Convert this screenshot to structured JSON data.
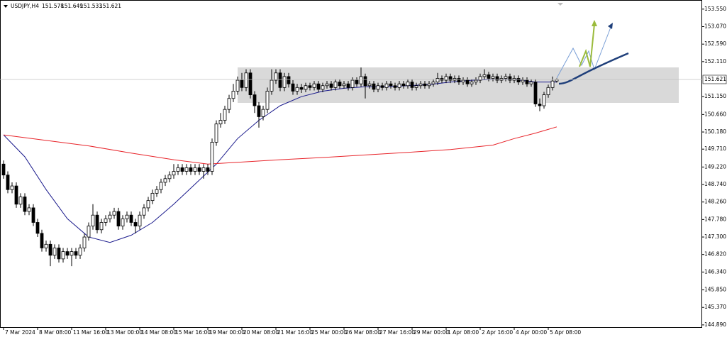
{
  "chart_data": {
    "type": "candlestick",
    "symbol": "USDJPY,H4",
    "candles": [
      [
        149.3,
        149.4,
        148.9,
        149.0
      ],
      [
        149.0,
        149.1,
        148.5,
        148.6
      ],
      [
        148.6,
        148.8,
        148.5,
        148.7
      ],
      [
        148.7,
        148.8,
        148.1,
        148.2
      ],
      [
        148.2,
        148.5,
        148.1,
        148.4
      ],
      [
        148.4,
        148.5,
        147.9,
        148.0
      ],
      [
        148.0,
        148.2,
        147.9,
        148.1
      ],
      [
        148.1,
        148.2,
        147.6,
        147.7
      ],
      [
        147.7,
        147.8,
        147.3,
        147.4
      ],
      [
        147.4,
        147.5,
        146.9,
        147.0
      ],
      [
        147.0,
        147.2,
        146.9,
        147.1
      ],
      [
        147.1,
        147.2,
        146.5,
        146.8
      ],
      [
        146.8,
        147.1,
        146.7,
        147.0
      ],
      [
        147.0,
        147.1,
        146.6,
        146.7
      ],
      [
        146.7,
        147.0,
        146.6,
        146.9
      ],
      [
        146.9,
        147.0,
        146.7,
        146.8
      ],
      [
        146.8,
        147.0,
        146.5,
        146.9
      ],
      [
        146.9,
        147.0,
        146.7,
        146.8
      ],
      [
        146.8,
        147.1,
        146.7,
        147.0
      ],
      [
        147.0,
        147.4,
        146.9,
        147.3
      ],
      [
        147.3,
        147.7,
        147.2,
        147.6
      ],
      [
        147.6,
        148.2,
        147.5,
        147.9
      ],
      [
        147.9,
        148.0,
        147.4,
        147.5
      ],
      [
        147.5,
        147.8,
        147.4,
        147.7
      ],
      [
        147.7,
        147.9,
        147.6,
        147.8
      ],
      [
        147.8,
        148.0,
        147.7,
        147.9
      ],
      [
        147.9,
        148.1,
        147.8,
        148.0
      ],
      [
        148.0,
        148.1,
        147.5,
        147.6
      ],
      [
        147.6,
        147.9,
        147.5,
        147.8
      ],
      [
        147.8,
        148.0,
        147.7,
        147.9
      ],
      [
        147.9,
        148.0,
        147.6,
        147.7
      ],
      [
        147.7,
        147.8,
        147.4,
        147.6
      ],
      [
        147.6,
        148.0,
        147.5,
        147.9
      ],
      [
        147.9,
        148.2,
        147.8,
        148.1
      ],
      [
        148.1,
        148.4,
        148.0,
        148.3
      ],
      [
        148.3,
        148.6,
        148.2,
        148.5
      ],
      [
        148.5,
        148.7,
        148.4,
        148.6
      ],
      [
        148.6,
        148.9,
        148.5,
        148.8
      ],
      [
        148.8,
        149.0,
        148.7,
        148.9
      ],
      [
        148.9,
        149.1,
        148.8,
        149.0
      ],
      [
        149.0,
        149.3,
        148.9,
        149.1
      ],
      [
        149.1,
        149.3,
        149.0,
        149.2
      ],
      [
        149.2,
        149.3,
        149.0,
        149.1
      ],
      [
        149.1,
        149.3,
        149.0,
        149.2
      ],
      [
        149.2,
        149.3,
        149.0,
        149.1
      ],
      [
        149.1,
        149.3,
        149.0,
        149.2
      ],
      [
        149.2,
        149.3,
        149.0,
        149.1
      ],
      [
        149.1,
        149.3,
        148.9,
        149.2
      ],
      [
        149.2,
        149.3,
        149.0,
        149.1
      ],
      [
        149.1,
        150.0,
        149.0,
        149.9
      ],
      [
        149.9,
        150.5,
        149.8,
        150.4
      ],
      [
        150.4,
        150.7,
        150.3,
        150.5
      ],
      [
        150.5,
        150.9,
        150.4,
        150.8
      ],
      [
        150.8,
        151.2,
        150.7,
        151.1
      ],
      [
        151.1,
        151.5,
        151.0,
        151.3
      ],
      [
        151.3,
        151.7,
        151.2,
        151.6
      ],
      [
        151.6,
        151.8,
        151.3,
        151.4
      ],
      [
        151.4,
        151.9,
        151.3,
        151.8
      ],
      [
        151.8,
        151.9,
        151.1,
        151.2
      ],
      [
        151.2,
        151.3,
        150.7,
        150.9
      ],
      [
        150.9,
        151.0,
        150.3,
        150.6
      ],
      [
        150.6,
        150.9,
        150.5,
        150.8
      ],
      [
        150.8,
        151.4,
        150.7,
        151.3
      ],
      [
        151.3,
        151.9,
        151.2,
        151.6
      ],
      [
        151.6,
        151.9,
        151.5,
        151.8
      ],
      [
        151.8,
        151.9,
        151.3,
        151.4
      ],
      [
        151.4,
        151.8,
        151.3,
        151.7
      ],
      [
        151.7,
        151.8,
        151.4,
        151.5
      ],
      [
        151.5,
        151.6,
        151.2,
        151.3
      ],
      [
        151.3,
        151.5,
        151.2,
        151.4
      ],
      [
        151.4,
        151.5,
        151.25,
        151.35
      ],
      [
        151.35,
        151.53,
        151.27,
        151.45
      ],
      [
        151.45,
        151.53,
        151.32,
        151.4
      ],
      [
        151.4,
        151.58,
        151.32,
        151.5
      ],
      [
        151.5,
        151.58,
        151.27,
        151.35
      ],
      [
        151.35,
        151.53,
        151.27,
        151.45
      ],
      [
        151.45,
        151.58,
        151.37,
        151.5
      ],
      [
        151.5,
        151.58,
        151.32,
        151.4
      ],
      [
        151.4,
        151.63,
        151.32,
        151.55
      ],
      [
        151.55,
        151.63,
        151.37,
        151.45
      ],
      [
        151.45,
        151.58,
        151.37,
        151.5
      ],
      [
        151.5,
        151.58,
        151.32,
        151.4
      ],
      [
        151.4,
        151.68,
        151.32,
        151.6
      ],
      [
        151.6,
        151.68,
        151.42,
        151.5
      ],
      [
        151.5,
        151.95,
        151.42,
        151.7
      ],
      [
        151.7,
        151.78,
        151.1,
        151.45
      ],
      [
        151.45,
        151.58,
        151.37,
        151.5
      ],
      [
        151.5,
        151.58,
        151.27,
        151.35
      ],
      [
        151.35,
        151.53,
        151.27,
        151.45
      ],
      [
        151.45,
        151.53,
        151.32,
        151.4
      ],
      [
        151.4,
        151.58,
        151.32,
        151.5
      ],
      [
        151.5,
        151.58,
        151.37,
        151.45
      ],
      [
        151.45,
        151.53,
        151.32,
        151.4
      ],
      [
        151.4,
        151.58,
        151.32,
        151.5
      ],
      [
        151.5,
        151.58,
        151.37,
        151.45
      ],
      [
        151.45,
        151.63,
        151.37,
        151.55
      ],
      [
        151.55,
        151.63,
        151.32,
        151.4
      ],
      [
        151.4,
        151.53,
        151.32,
        151.45
      ],
      [
        151.45,
        151.58,
        151.37,
        151.5
      ],
      [
        151.5,
        151.58,
        151.37,
        151.45
      ],
      [
        151.45,
        151.58,
        151.37,
        151.5
      ],
      [
        151.5,
        151.63,
        151.42,
        151.55
      ],
      [
        151.55,
        151.8,
        151.47,
        151.65
      ],
      [
        151.65,
        151.73,
        151.52,
        151.6
      ],
      [
        151.6,
        151.78,
        151.52,
        151.7
      ],
      [
        151.7,
        151.78,
        151.52,
        151.6
      ],
      [
        151.6,
        151.73,
        151.52,
        151.65
      ],
      [
        151.65,
        151.73,
        151.47,
        151.55
      ],
      [
        151.55,
        151.68,
        151.47,
        151.6
      ],
      [
        151.6,
        151.68,
        151.42,
        151.5
      ],
      [
        151.5,
        151.63,
        151.42,
        151.55
      ],
      [
        151.55,
        151.68,
        151.47,
        151.6
      ],
      [
        151.6,
        151.78,
        151.52,
        151.7
      ],
      [
        151.7,
        151.9,
        151.62,
        151.75
      ],
      [
        151.75,
        151.83,
        151.57,
        151.65
      ],
      [
        151.65,
        151.78,
        151.57,
        151.7
      ],
      [
        151.7,
        151.78,
        151.52,
        151.6
      ],
      [
        151.6,
        151.73,
        151.52,
        151.65
      ],
      [
        151.65,
        151.78,
        151.57,
        151.7
      ],
      [
        151.7,
        151.78,
        151.52,
        151.6
      ],
      [
        151.6,
        151.73,
        151.52,
        151.65
      ],
      [
        151.65,
        151.73,
        151.47,
        151.55
      ],
      [
        151.55,
        151.68,
        151.47,
        151.6
      ],
      [
        151.6,
        151.68,
        151.42,
        151.5
      ],
      [
        151.5,
        151.63,
        151.42,
        151.55
      ],
      [
        151.55,
        151.63,
        150.87,
        150.95
      ],
      [
        150.95,
        151.1,
        150.75,
        150.9
      ],
      [
        150.9,
        151.28,
        150.82,
        151.2
      ],
      [
        151.2,
        151.48,
        151.12,
        151.4
      ],
      [
        151.4,
        151.7,
        151.32,
        151.578
      ],
      [
        151.578,
        151.649,
        151.533,
        151.621
      ]
    ],
    "series": [
      {
        "color": "#1a1a8c",
        "x": [
          0,
          5,
          10,
          15,
          20,
          25,
          30,
          35,
          40,
          45,
          50,
          55,
          60,
          65,
          70,
          75,
          80,
          85,
          90,
          95,
          100,
          105,
          110,
          115,
          120,
          125,
          130
        ],
        "values": [
          150.1,
          149.5,
          148.6,
          147.8,
          147.3,
          147.15,
          147.35,
          147.7,
          148.2,
          148.75,
          149.3,
          150.0,
          150.5,
          150.9,
          151.15,
          151.3,
          151.38,
          151.42,
          151.42,
          151.45,
          151.48,
          151.55,
          151.6,
          151.62,
          151.62,
          151.55,
          151.55
        ]
      },
      {
        "color": "#e8242a",
        "x": [
          0,
          10,
          20,
          30,
          40,
          48,
          55,
          65,
          75,
          85,
          95,
          105,
          115,
          120,
          125,
          130
        ],
        "values": [
          150.1,
          149.95,
          149.8,
          149.6,
          149.42,
          149.3,
          149.35,
          149.42,
          149.48,
          149.55,
          149.62,
          149.7,
          149.82,
          150.0,
          150.15,
          150.32
        ]
      }
    ],
    "ylim": [
      144.81,
      153.8
    ],
    "yticks": [
      {
        "value": 153.55,
        "label": "153.550"
      },
      {
        "value": 153.07,
        "label": "153.070"
      },
      {
        "value": 152.59,
        "label": "152.590"
      },
      {
        "value": 152.11,
        "label": "152.110"
      },
      {
        "value": 151.15,
        "label": "151.150"
      },
      {
        "value": 150.66,
        "label": "150.660"
      },
      {
        "value": 150.18,
        "label": "150.180"
      },
      {
        "value": 149.71,
        "label": "149.710"
      },
      {
        "value": 149.22,
        "label": "149.220"
      },
      {
        "value": 148.74,
        "label": "148.740"
      },
      {
        "value": 148.26,
        "label": "148.260"
      },
      {
        "value": 147.78,
        "label": "147.780"
      },
      {
        "value": 147.3,
        "label": "147.300"
      },
      {
        "value": 146.82,
        "label": "146.820"
      },
      {
        "value": 146.34,
        "label": "146.340"
      },
      {
        "value": 145.85,
        "label": "145.850"
      },
      {
        "value": 145.37,
        "label": "145.370"
      },
      {
        "value": 144.89,
        "label": "144.890"
      }
    ],
    "xlim": [
      0,
      164
    ],
    "xticks": [
      {
        "value": 0,
        "label": "7 Mar 2024"
      },
      {
        "value": 8,
        "label": "8 Mar 08:00"
      },
      {
        "value": 16,
        "label": "11 Mar 16:00"
      },
      {
        "value": 24,
        "label": "13 Mar 00:00"
      },
      {
        "value": 32,
        "label": "14 Mar 08:00"
      },
      {
        "value": 40,
        "label": "15 Mar 16:00"
      },
      {
        "value": 48,
        "label": "19 Mar 00:00"
      },
      {
        "value": 56,
        "label": "20 Mar 08:00"
      },
      {
        "value": 64,
        "label": "21 Mar 16:00"
      },
      {
        "value": 72,
        "label": "25 Mar 00:00"
      },
      {
        "value": 80,
        "label": "26 Mar 08:00"
      },
      {
        "value": 88,
        "label": "27 Mar 16:00"
      },
      {
        "value": 96,
        "label": "29 Mar 00:00"
      },
      {
        "value": 104,
        "label": "1 Apr 08:00"
      },
      {
        "value": 112,
        "label": "2 Apr 16:00"
      },
      {
        "value": 120,
        "label": "4 Apr 00:00"
      },
      {
        "value": 128,
        "label": "5 Apr 08:00"
      }
    ]
  }
}
